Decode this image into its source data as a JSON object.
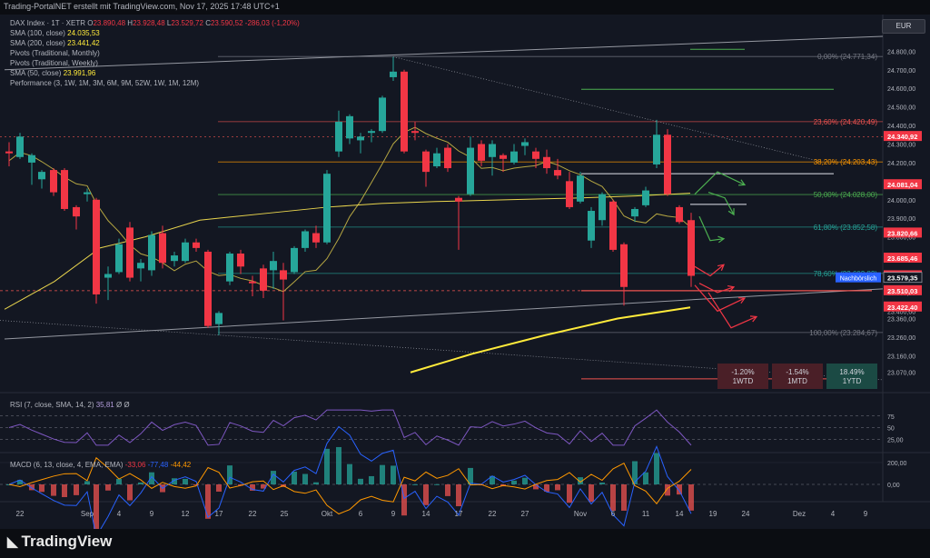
{
  "header": {
    "credit": "Trading-PortalNET erstellt mit TradingView.com, Nov 17, 2025 17:48 UTC+1"
  },
  "currency": "EUR",
  "footer": {
    "logo_text": "TradingView"
  },
  "legend": {
    "symbol": "DAX Index · 1T · XETR",
    "ohlc": {
      "o_label": "O",
      "o": "23.890,48",
      "h_label": "H",
      "h": "23.928,48",
      "l_label": "L",
      "l": "23.529,72",
      "c_label": "C",
      "c": "23.590,52",
      "chg": "-286,03 (-1,20%)"
    },
    "sma100": {
      "label": "SMA (100, close)",
      "value": "24.035,53"
    },
    "sma200": {
      "label": "SMA (200, close)",
      "value": "23.441,42"
    },
    "pivots_monthly": "Pivots (Traditional, Monthly)",
    "pivots_weekly": "Pivots (Traditional, Weekly)",
    "sma50": {
      "label": "SMA (50, close)",
      "value": "23.991,96"
    },
    "performance": "Performance (3, 1W, 1M, 3M, 6M, 9M, 52W, 1W, 1M, 12M)"
  },
  "rsi_legend": {
    "label": "RSI (7, close, SMA, 14, 2)",
    "value": "35,81",
    "extra": "Ø Ø"
  },
  "macd_legend": {
    "label": "MACD (6, 13, close, 4, EMA, EMA)",
    "v1": "-33,06",
    "v2": "-77,48",
    "v3": "-44,42"
  },
  "colors": {
    "bg": "#131722",
    "up": "#26a69a",
    "down": "#f23645",
    "sma_yellow": "#ffeb3b",
    "sma_olive": "#b5a642",
    "grid": "#2a2e39",
    "fib_red": "#ef5350",
    "fib_orange": "#ff9800",
    "fib_green": "#4caf50",
    "fib_teal": "#26a69a",
    "fib_gray": "#787b86",
    "arrow_green": "#4caf50",
    "arrow_red": "#f23645",
    "rsi_line": "#7e57c2",
    "macd_blue": "#2962ff",
    "macd_orange": "#ff9800"
  },
  "chart_data": {
    "type": "candlestick",
    "ylim": [
      23010,
      24880
    ],
    "y_ticks": [
      "24.800,00",
      "24.700,00",
      "24.600,00",
      "24.500,00",
      "24.400,00",
      "24.300,00",
      "24.200,00",
      "24.100,00",
      "24.000,00",
      "23.900,00",
      "23.800,00",
      "23.700,00",
      "23.600,00",
      "23.500,00",
      "23.400,00",
      "23.360,00",
      "23.260,00",
      "23.160,00",
      "23.070,00"
    ],
    "y_tick_values": [
      24800,
      24700,
      24600,
      24500,
      24400,
      24300,
      24200,
      24100,
      24000,
      23900,
      23800,
      23700,
      23600,
      23500,
      23400,
      23360,
      23260,
      23160,
      23070
    ],
    "x_labels": [
      "22",
      "Sep",
      "4",
      "9",
      "12",
      "17",
      "22",
      "25",
      "Okt",
      "6",
      "9",
      "14",
      "17",
      "22",
      "27",
      "Nov",
      "6",
      "11",
      "14",
      "19",
      "24",
      "Dez",
      "4",
      "9"
    ],
    "candles": [
      {
        "x": 10,
        "o": 24260,
        "h": 24310,
        "l": 24180,
        "c": 24250
      },
      {
        "x": 22,
        "o": 24230,
        "h": 24360,
        "l": 24220,
        "c": 24340
      },
      {
        "x": 35,
        "o": 24200,
        "h": 24250,
        "l": 24080,
        "c": 24240
      },
      {
        "x": 46,
        "o": 24110,
        "h": 24160,
        "l": 24060,
        "c": 24150
      },
      {
        "x": 59,
        "o": 24160,
        "h": 24170,
        "l": 24020,
        "c": 24040
      },
      {
        "x": 71,
        "o": 24160,
        "h": 24170,
        "l": 23940,
        "c": 23950
      },
      {
        "x": 84,
        "o": 23960,
        "h": 23970,
        "l": 23840,
        "c": 23910
      },
      {
        "x": 96,
        "o": 24030,
        "h": 24060,
        "l": 23990,
        "c": 24040
      },
      {
        "x": 106,
        "o": 24000,
        "h": 24010,
        "l": 23440,
        "c": 23490
      },
      {
        "x": 119,
        "o": 23580,
        "h": 23640,
        "l": 23460,
        "c": 23600
      },
      {
        "x": 131,
        "o": 23610,
        "h": 23790,
        "l": 23600,
        "c": 23760
      },
      {
        "x": 143,
        "o": 23850,
        "h": 23880,
        "l": 23560,
        "c": 23580
      },
      {
        "x": 155,
        "o": 23630,
        "h": 23680,
        "l": 23560,
        "c": 23660
      },
      {
        "x": 167,
        "o": 23620,
        "h": 23830,
        "l": 23590,
        "c": 23810
      },
      {
        "x": 179,
        "o": 23820,
        "h": 23860,
        "l": 23630,
        "c": 23660
      },
      {
        "x": 192,
        "o": 23670,
        "h": 23720,
        "l": 23640,
        "c": 23700
      },
      {
        "x": 204,
        "o": 23670,
        "h": 23790,
        "l": 23660,
        "c": 23770
      },
      {
        "x": 216,
        "o": 23770,
        "h": 23790,
        "l": 23720,
        "c": 23740
      },
      {
        "x": 229,
        "o": 23720,
        "h": 23730,
        "l": 23310,
        "c": 23320
      },
      {
        "x": 241,
        "o": 23330,
        "h": 23400,
        "l": 23270,
        "c": 23390
      },
      {
        "x": 253,
        "o": 23560,
        "h": 23720,
        "l": 23540,
        "c": 23710
      },
      {
        "x": 265,
        "o": 23710,
        "h": 23730,
        "l": 23600,
        "c": 23640
      },
      {
        "x": 278,
        "o": 23560,
        "h": 23590,
        "l": 23480,
        "c": 23550
      },
      {
        "x": 290,
        "o": 23630,
        "h": 23650,
        "l": 23470,
        "c": 23510
      },
      {
        "x": 301,
        "o": 23620,
        "h": 23720,
        "l": 23520,
        "c": 23670
      },
      {
        "x": 312,
        "o": 23620,
        "h": 23660,
        "l": 23350,
        "c": 23570
      },
      {
        "x": 324,
        "o": 23610,
        "h": 23750,
        "l": 23600,
        "c": 23740
      },
      {
        "x": 336,
        "o": 23740,
        "h": 23840,
        "l": 23720,
        "c": 23830
      },
      {
        "x": 348,
        "o": 23820,
        "h": 23860,
        "l": 23740,
        "c": 23770
      },
      {
        "x": 360,
        "o": 23770,
        "h": 24160,
        "l": 23760,
        "c": 24140
      },
      {
        "x": 373,
        "o": 24260,
        "h": 24480,
        "l": 24230,
        "c": 24420
      },
      {
        "x": 385,
        "o": 24330,
        "h": 24460,
        "l": 24300,
        "c": 24450
      },
      {
        "x": 397,
        "o": 24320,
        "h": 24360,
        "l": 24250,
        "c": 24340
      },
      {
        "x": 409,
        "o": 24360,
        "h": 24380,
        "l": 24310,
        "c": 24370
      },
      {
        "x": 421,
        "o": 24370,
        "h": 24560,
        "l": 24360,
        "c": 24550
      },
      {
        "x": 433,
        "o": 24660,
        "h": 24770,
        "l": 24640,
        "c": 24690
      },
      {
        "x": 445,
        "o": 24690,
        "h": 24700,
        "l": 24250,
        "c": 24260
      },
      {
        "x": 457,
        "o": 24370,
        "h": 24420,
        "l": 24320,
        "c": 24360
      },
      {
        "x": 469,
        "o": 24260,
        "h": 24270,
        "l": 24070,
        "c": 24150
      },
      {
        "x": 481,
        "o": 24180,
        "h": 24280,
        "l": 24170,
        "c": 24250
      },
      {
        "x": 493,
        "o": 24280,
        "h": 24300,
        "l": 24150,
        "c": 24170
      },
      {
        "x": 505,
        "o": 24010,
        "h": 24020,
        "l": 23730,
        "c": 23990
      },
      {
        "x": 518,
        "o": 24030,
        "h": 24340,
        "l": 24020,
        "c": 24280
      },
      {
        "x": 530,
        "o": 24300,
        "h": 24320,
        "l": 24180,
        "c": 24210
      },
      {
        "x": 542,
        "o": 24230,
        "h": 24320,
        "l": 24130,
        "c": 24300
      },
      {
        "x": 554,
        "o": 24240,
        "h": 24250,
        "l": 24150,
        "c": 24220
      },
      {
        "x": 566,
        "o": 24200,
        "h": 24300,
        "l": 24190,
        "c": 24260
      },
      {
        "x": 578,
        "o": 24290,
        "h": 24330,
        "l": 24240,
        "c": 24310
      },
      {
        "x": 590,
        "o": 24260,
        "h": 24280,
        "l": 24170,
        "c": 24220
      },
      {
        "x": 602,
        "o": 24230,
        "h": 24270,
        "l": 24140,
        "c": 24170
      },
      {
        "x": 614,
        "o": 24160,
        "h": 24220,
        "l": 24110,
        "c": 24130
      },
      {
        "x": 627,
        "o": 24100,
        "h": 24150,
        "l": 23950,
        "c": 23960
      },
      {
        "x": 639,
        "o": 23990,
        "h": 24150,
        "l": 23980,
        "c": 24130
      },
      {
        "x": 651,
        "o": 23780,
        "h": 23960,
        "l": 23740,
        "c": 23940
      },
      {
        "x": 663,
        "o": 23890,
        "h": 24040,
        "l": 23860,
        "c": 24030
      },
      {
        "x": 675,
        "o": 23990,
        "h": 24000,
        "l": 23720,
        "c": 23730
      },
      {
        "x": 687,
        "o": 23760,
        "h": 23770,
        "l": 23430,
        "c": 23530
      },
      {
        "x": 699,
        "o": 23910,
        "h": 23960,
        "l": 23880,
        "c": 23950
      },
      {
        "x": 711,
        "o": 23970,
        "h": 24070,
        "l": 23960,
        "c": 24050
      },
      {
        "x": 723,
        "o": 24190,
        "h": 24430,
        "l": 24170,
        "c": 24350
      },
      {
        "x": 735,
        "o": 24350,
        "h": 24380,
        "l": 24020,
        "c": 24030
      },
      {
        "x": 748,
        "o": 23960,
        "h": 23970,
        "l": 23870,
        "c": 23880
      },
      {
        "x": 761,
        "o": 23890,
        "h": 23930,
        "l": 23530,
        "c": 23590
      }
    ],
    "fib_levels": [
      {
        "label": "0,00% (24.771,34)",
        "value": 24771.34,
        "color": "#787b86"
      },
      {
        "label": "23,60% (24.420,49)",
        "value": 24420.49,
        "color": "#ef5350"
      },
      {
        "label": "38,20% (24.203,43)",
        "value": 24203.43,
        "color": "#ff9800"
      },
      {
        "label": "50,00% (24.028,00)",
        "value": 24028.0,
        "color": "#4caf50"
      },
      {
        "label": "61,80% (23.852,58)",
        "value": 23852.58,
        "color": "#26a69a"
      },
      {
        "label": "78,60% (23.602,82)",
        "value": 23602.82,
        "color": "#26a69a"
      },
      {
        "label": "100,00% (23.284,67)",
        "value": 23284.67,
        "color": "#787b86"
      }
    ],
    "price_tags": [
      {
        "text": "24.340,92",
        "value": 24340.92,
        "bg": "#f23645"
      },
      {
        "text": "24.081,04",
        "value": 24081.04,
        "bg": "#f23645"
      },
      {
        "text": "23.820,66",
        "value": 23820.66,
        "bg": "#f23645"
      },
      {
        "text": "23.685,46",
        "value": 23685.46,
        "bg": "#f23645"
      },
      {
        "text": "23.590,52",
        "value": 23590.52,
        "bg": "#f23645"
      },
      {
        "text": "23.579,35",
        "value": 23579.35,
        "bg": "#131722"
      },
      {
        "text": "23.510,03",
        "value": 23510.03,
        "bg": "#f23645"
      },
      {
        "text": "23.422,40",
        "value": 23422.4,
        "bg": "#f23645"
      }
    ],
    "after_hours_tag": "Nachbörslich",
    "performance": [
      {
        "value": "-1.20%",
        "period": "1WTD",
        "bg": "#4a1f27"
      },
      {
        "value": "-1.54%",
        "period": "1MTD",
        "bg": "#4a1f27"
      },
      {
        "value": "18.49%",
        "period": "1YTD",
        "bg": "#1b4a44"
      }
    ],
    "rsi": {
      "levels": [
        "75",
        "50",
        "25,00"
      ],
      "level_values": [
        75,
        50,
        25
      ]
    },
    "macd": {
      "levels": [
        "200,00",
        "0,00"
      ],
      "level_values": [
        200,
        0
      ]
    }
  }
}
